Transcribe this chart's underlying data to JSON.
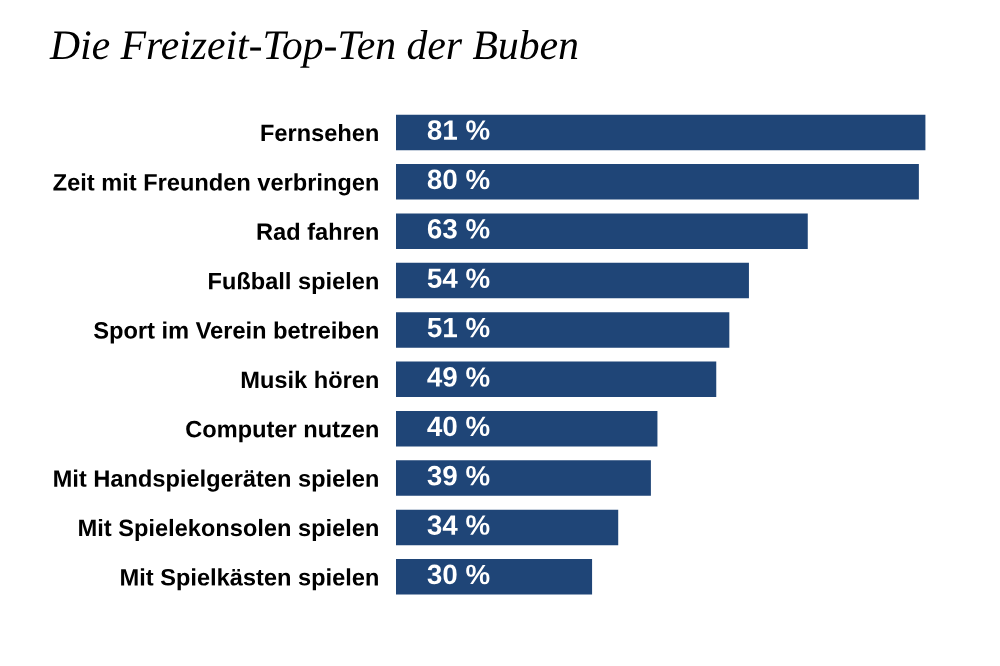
{
  "chart_data": {
    "type": "bar",
    "orientation": "horizontal",
    "title": "Die Freizeit-Top-Ten der Buben",
    "categories": [
      "Fernsehen",
      "Zeit mit Freunden verbringen",
      "Rad fahren",
      "Fußball spielen",
      "Sport im Verein betreiben",
      "Musik hören",
      "Computer nutzen",
      "Mit Handspielgeräten spielen",
      "Mit Spielekonsolen spielen",
      "Mit Spielkästen spielen"
    ],
    "values": [
      81,
      80,
      63,
      54,
      51,
      49,
      40,
      39,
      34,
      30
    ],
    "value_labels": [
      "81 %",
      "80 %",
      "63 %",
      "54 %",
      "51 %",
      "49 %",
      "40 %",
      "39 %",
      "34 %",
      "30 %"
    ],
    "color": "#1f4577",
    "grid": false,
    "legend": false
  }
}
